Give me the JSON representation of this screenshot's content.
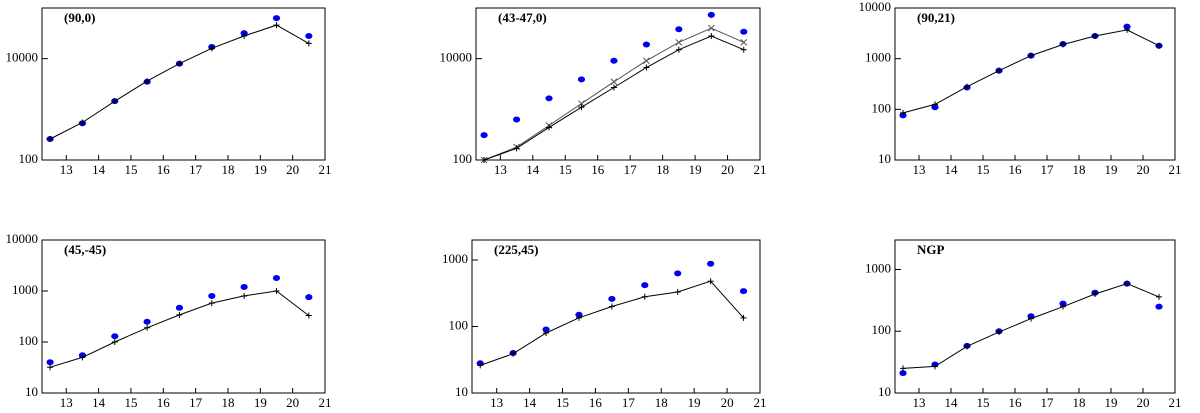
{
  "chart_data": [
    {
      "type": "line",
      "title": "(90,0)",
      "x": [
        12.5,
        13.5,
        14.5,
        15.5,
        16.5,
        17.5,
        18.5,
        19.5,
        20.5
      ],
      "xlim": [
        12.25,
        21
      ],
      "xticks": [
        13,
        14,
        15,
        16,
        17,
        18,
        19,
        20,
        21
      ],
      "ylim": [
        100,
        100000
      ],
      "yticks": [
        100,
        10000
      ],
      "log_y": true,
      "series": [
        {
          "color": "#0000ee",
          "mode": "points",
          "values": [
            260,
            530,
            1450,
            3500,
            8000,
            17000,
            32000,
            63000,
            28000
          ]
        },
        {
          "color": "#000000",
          "mode": "line",
          "marker": "+",
          "values": [
            260,
            550,
            1450,
            3600,
            8000,
            16000,
            28000,
            46000,
            20000
          ]
        }
      ]
    },
    {
      "type": "line",
      "title": "(43-47,0)",
      "x": [
        12.5,
        13.5,
        14.5,
        15.5,
        16.5,
        17.5,
        18.5,
        19.5,
        20.5
      ],
      "xlim": [
        12.25,
        21
      ],
      "xticks": [
        13,
        14,
        15,
        16,
        17,
        18,
        19,
        20,
        21
      ],
      "ylim": [
        100,
        100000
      ],
      "yticks": [
        100,
        10000
      ],
      "log_y": true,
      "series": [
        {
          "color": "#0000ee",
          "mode": "points",
          "values": [
            310,
            630,
            1650,
            3900,
            9100,
            19000,
            38000,
            73000,
            34000
          ]
        },
        {
          "color": "#555555",
          "mode": "line",
          "marker": "x",
          "values": [
            100,
            180,
            480,
            1300,
            3500,
            9100,
            21000,
            40000,
            21000
          ]
        },
        {
          "color": "#000000",
          "mode": "line",
          "marker": "+",
          "values": [
            100,
            170,
            440,
            1100,
            2700,
            6700,
            15000,
            28000,
            15000
          ]
        }
      ]
    },
    {
      "type": "line",
      "title": "(90,21)",
      "x": [
        12.5,
        13.5,
        14.5,
        15.5,
        16.5,
        17.5,
        18.5,
        19.5,
        20.5
      ],
      "xlim": [
        12.25,
        21
      ],
      "xticks": [
        13,
        14,
        15,
        16,
        17,
        18,
        19,
        20,
        21
      ],
      "ylim": [
        10,
        10000
      ],
      "yticks": [
        10,
        100,
        1000,
        10000
      ],
      "log_y": true,
      "series": [
        {
          "color": "#0000ee",
          "mode": "points",
          "values": [
            76,
            110,
            270,
            580,
            1150,
            1950,
            2800,
            4300,
            1800
          ]
        },
        {
          "color": "#000000",
          "mode": "line",
          "marker": "+",
          "values": [
            85,
            125,
            280,
            580,
            1150,
            1900,
            2800,
            3700,
            1800
          ]
        }
      ]
    },
    {
      "type": "line",
      "title": "(45,-45)",
      "x": [
        12.5,
        13.5,
        14.5,
        15.5,
        16.5,
        17.5,
        18.5,
        19.5,
        20.5
      ],
      "xlim": [
        12.25,
        21
      ],
      "xticks": [
        13,
        14,
        15,
        16,
        17,
        18,
        19,
        20,
        21
      ],
      "ylim": [
        10,
        10000
      ],
      "yticks": [
        10,
        100,
        1000,
        10000
      ],
      "log_y": true,
      "series": [
        {
          "color": "#0000ee",
          "mode": "points",
          "values": [
            40,
            55,
            130,
            250,
            470,
            800,
            1200,
            1800,
            760
          ]
        },
        {
          "color": "#000000",
          "mode": "line",
          "marker": "+",
          "values": [
            32,
            50,
            100,
            190,
            340,
            580,
            800,
            1000,
            330
          ]
        }
      ]
    },
    {
      "type": "line",
      "title": "(225,45)",
      "x": [
        12.5,
        13.5,
        14.5,
        15.5,
        16.5,
        17.5,
        18.5,
        19.5,
        20.5
      ],
      "xlim": [
        12.25,
        21
      ],
      "xticks": [
        13,
        14,
        15,
        16,
        17,
        18,
        19,
        20,
        21
      ],
      "ylim": [
        10,
        2000
      ],
      "yticks": [
        10,
        100,
        1000
      ],
      "log_y": true,
      "series": [
        {
          "color": "#0000ee",
          "mode": "points",
          "values": [
            28,
            40,
            90,
            150,
            260,
            420,
            630,
            880,
            340
          ]
        },
        {
          "color": "#000000",
          "mode": "line",
          "marker": "+",
          "values": [
            26,
            39,
            80,
            135,
            200,
            280,
            330,
            480,
            135
          ]
        }
      ]
    },
    {
      "type": "line",
      "title": "NGP",
      "x": [
        12.5,
        13.5,
        14.5,
        15.5,
        16.5,
        17.5,
        18.5,
        19.5,
        20.5
      ],
      "xlim": [
        12.25,
        21
      ],
      "xticks": [
        13,
        14,
        15,
        16,
        17,
        18,
        19,
        20,
        21
      ],
      "ylim": [
        10,
        3000
      ],
      "yticks": [
        10,
        100,
        1000
      ],
      "log_y": true,
      "series": [
        {
          "color": "#0000ee",
          "mode": "points",
          "values": [
            21,
            29,
            58,
            100,
            175,
            280,
            420,
            590,
            250
          ]
        },
        {
          "color": "#000000",
          "mode": "line",
          "marker": "+",
          "values": [
            25,
            27,
            57,
            97,
            160,
            250,
            400,
            590,
            360
          ]
        }
      ]
    }
  ]
}
